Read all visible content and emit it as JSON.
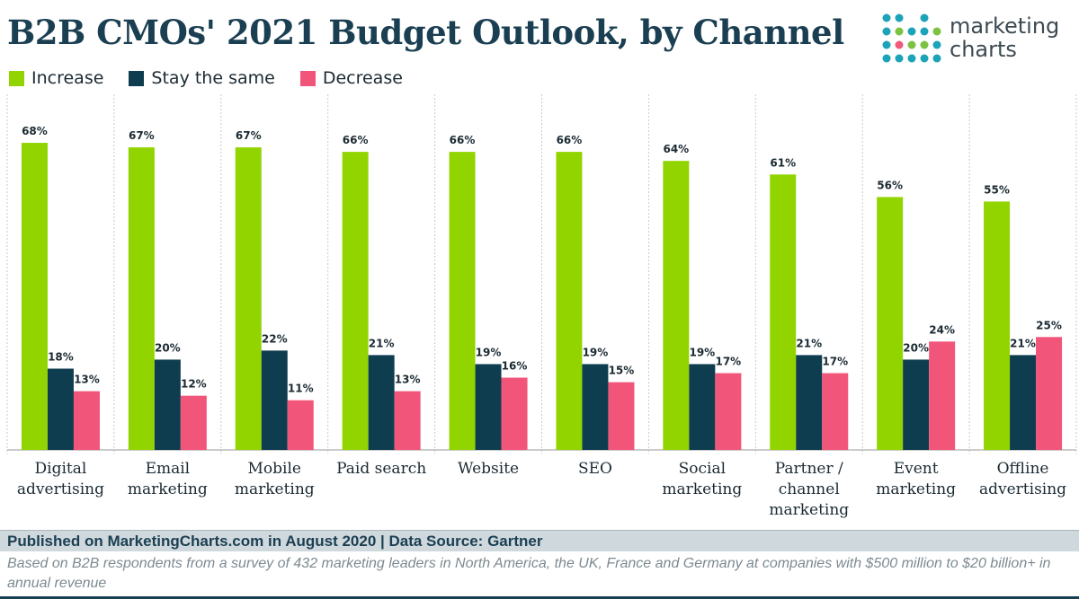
{
  "title": "B2B CMOs' 2021 Budget Outlook, by Channel",
  "logo": {
    "line1": "marketing",
    "line2": "charts"
  },
  "legend": {
    "increase": "Increase",
    "same": "Stay the same",
    "decrease": "Decrease"
  },
  "colors": {
    "increase": "#92d400",
    "same": "#0e3d4f",
    "decrease": "#f2557a",
    "title": "#1b3f52",
    "logo_dots": [
      "#1ba3b8",
      "#7cc242",
      "#f05a7e"
    ]
  },
  "chart_data": {
    "type": "bar",
    "title": "B2B CMOs' 2021 Budget Outlook, by Channel",
    "xlabel": "",
    "ylabel": "",
    "ylim": [
      0,
      70
    ],
    "value_suffix": "%",
    "categories": [
      [
        "Digital",
        "advertising"
      ],
      [
        "Email",
        "marketing"
      ],
      [
        "Mobile",
        "marketing"
      ],
      [
        "Paid search"
      ],
      [
        "Website"
      ],
      [
        "SEO"
      ],
      [
        "Social",
        "marketing"
      ],
      [
        "Partner /",
        "channel",
        "marketing"
      ],
      [
        "Event",
        "marketing"
      ],
      [
        "Offline",
        "advertising"
      ]
    ],
    "series": [
      {
        "name": "Increase",
        "key": "increase",
        "values": [
          68,
          67,
          67,
          66,
          66,
          66,
          64,
          61,
          56,
          55
        ]
      },
      {
        "name": "Stay the same",
        "key": "same",
        "values": [
          18,
          20,
          22,
          21,
          19,
          19,
          19,
          21,
          20,
          21
        ]
      },
      {
        "name": "Decrease",
        "key": "decrease",
        "values": [
          13,
          12,
          11,
          13,
          16,
          15,
          17,
          17,
          24,
          25
        ]
      }
    ]
  },
  "footer": {
    "published": "Published on MarketingCharts.com in August 2020 | Data Source: Gartner",
    "note": "Based on B2B respondents from a survey of 432 marketing leaders in North America, the UK, France and Germany at companies with $500 million to $20 billion+ in annual revenue"
  }
}
